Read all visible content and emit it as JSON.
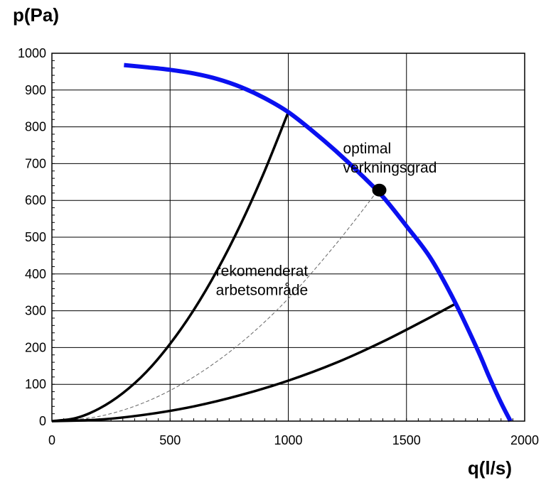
{
  "chart_data": {
    "type": "line",
    "title": "",
    "xlabel": "q(l/s)",
    "ylabel": "p(Pa)",
    "xlim": [
      0,
      2000
    ],
    "ylim": [
      0,
      1000
    ],
    "x_ticks": [
      0,
      500,
      1000,
      1500,
      2000
    ],
    "y_ticks": [
      0,
      100,
      200,
      300,
      400,
      500,
      600,
      700,
      800,
      900,
      1000
    ],
    "x_minor_step": 50,
    "y_minor_step": 20,
    "grid": true,
    "series": [
      {
        "color": "#0a10f0",
        "style": "solid-thick",
        "x": [
          305,
          400,
          500,
          600,
          700,
          800,
          900,
          1000,
          1100,
          1200,
          1300,
          1400,
          1500,
          1600,
          1700,
          1800,
          1850,
          1900,
          1940
        ],
        "y": [
          968,
          962,
          955,
          945,
          930,
          908,
          878,
          840,
          790,
          735,
          675,
          610,
          530,
          445,
          330,
          195,
          120,
          50,
          0
        ]
      },
      {
        "color": "#000000",
        "style": "solid",
        "x": [
          0,
          100,
          200,
          300,
          400,
          500,
          600,
          700,
          800,
          900,
          1000
        ],
        "y": [
          0,
          8,
          34,
          76,
          134,
          210,
          302,
          411,
          537,
          680,
          840
        ]
      },
      {
        "color": "#000000",
        "style": "solid",
        "x": [
          0,
          200,
          400,
          600,
          800,
          1000,
          1200,
          1400,
          1600,
          1710
        ],
        "y": [
          0,
          4,
          18,
          40,
          71,
          110,
          158,
          216,
          282,
          320
        ]
      },
      {
        "color": "#666666",
        "style": "dashed",
        "x": [
          0,
          200,
          400,
          600,
          800,
          1000,
          1200,
          1380
        ],
        "y": [
          0,
          13,
          53,
          120,
          213,
          333,
          480,
          628
        ]
      }
    ],
    "points": [
      {
        "x": 1385,
        "y": 628,
        "color": "#000000"
      }
    ],
    "annotations": [
      {
        "lines": [
          "optimal",
          "verkningsgrad"
        ],
        "x": 1385,
        "y": 728
      },
      {
        "lines": [
          "rekomenderat",
          "arbetsområde"
        ],
        "x": 790,
        "y": 395
      }
    ]
  }
}
